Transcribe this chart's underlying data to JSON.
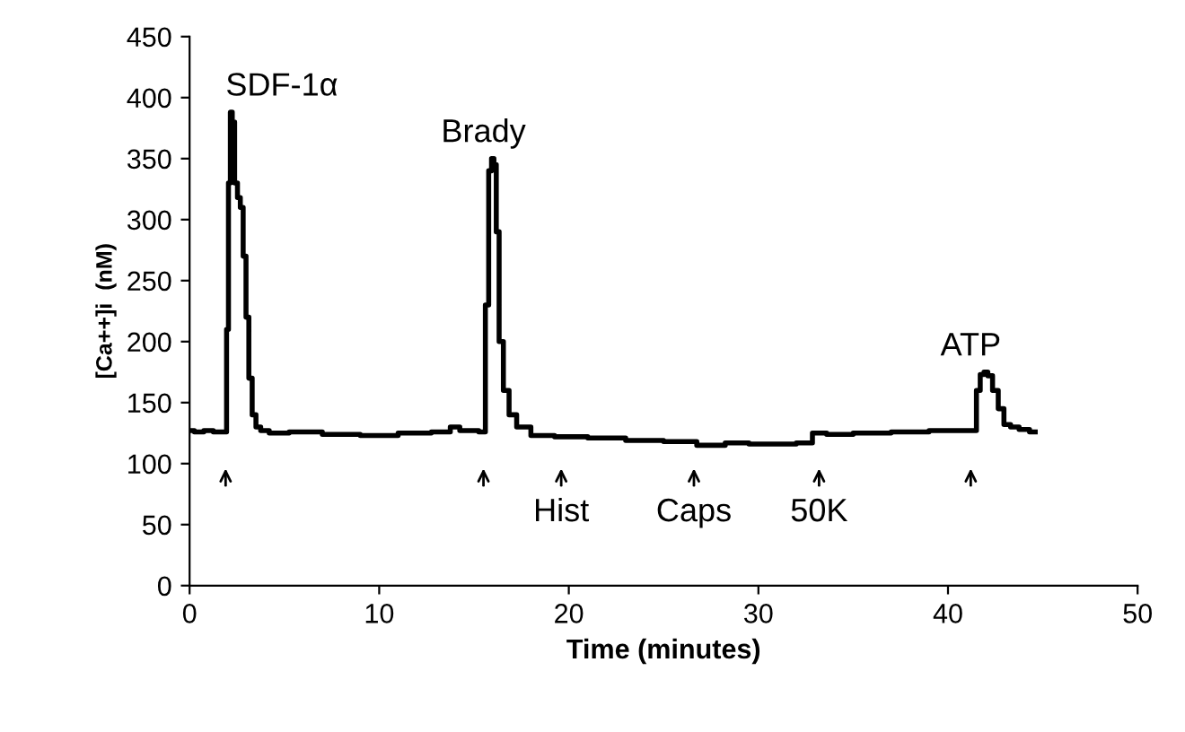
{
  "chart_data": {
    "type": "line",
    "xlabel": "Time (minutes)",
    "ylabel": "[Ca++]i  (nM)",
    "x": [
      0,
      0.5,
      1,
      1.5,
      1.9,
      2.0,
      2.1,
      2.2,
      2.3,
      2.45,
      2.6,
      2.75,
      2.9,
      3.05,
      3.2,
      3.4,
      3.6,
      3.9,
      4.5,
      6,
      8,
      10,
      12,
      13.5,
      14,
      14.5,
      15,
      15.5,
      15.7,
      15.85,
      16.0,
      16.1,
      16.25,
      16.4,
      16.7,
      17.0,
      17.5,
      18.5,
      20,
      22,
      24,
      26,
      27.5,
      29,
      30,
      31.5,
      32.5,
      33.2,
      34,
      36,
      38,
      40,
      41.4,
      41.6,
      41.8,
      42.0,
      42.2,
      42.5,
      42.8,
      43.1,
      43.5,
      44,
      44.6
    ],
    "values": [
      127,
      126,
      127,
      126,
      126,
      210,
      330,
      388,
      380,
      330,
      318,
      310,
      270,
      220,
      170,
      140,
      130,
      127,
      125,
      126,
      124,
      123,
      125,
      126,
      130,
      127,
      127,
      126,
      230,
      340,
      350,
      345,
      290,
      200,
      160,
      140,
      130,
      123,
      122,
      121,
      119,
      118,
      115,
      117,
      116,
      116,
      117,
      125,
      124,
      125,
      126,
      127,
      127,
      160,
      173,
      175,
      172,
      160,
      145,
      132,
      130,
      128,
      126
    ],
    "color": "#000000",
    "xlim": [
      0,
      50
    ],
    "xticks": [
      0,
      10,
      20,
      30,
      40,
      50
    ],
    "ylim": [
      0,
      450
    ],
    "yticks": [
      0,
      50,
      100,
      150,
      200,
      250,
      300,
      350,
      400,
      450
    ],
    "grid": false,
    "legend": false,
    "annotations": [
      {
        "text": "SDF-1α",
        "x": 1.9,
        "y": 388
      },
      {
        "text": "Brady",
        "x": 15.5,
        "y": 350
      },
      {
        "text": "Hist",
        "x": 19.6,
        "y": 122
      },
      {
        "text": "Caps",
        "x": 26.6,
        "y": 118
      },
      {
        "text": "50K",
        "x": 33.2,
        "y": 125
      },
      {
        "text": "ATP",
        "x": 41.2,
        "y": 175
      }
    ]
  }
}
